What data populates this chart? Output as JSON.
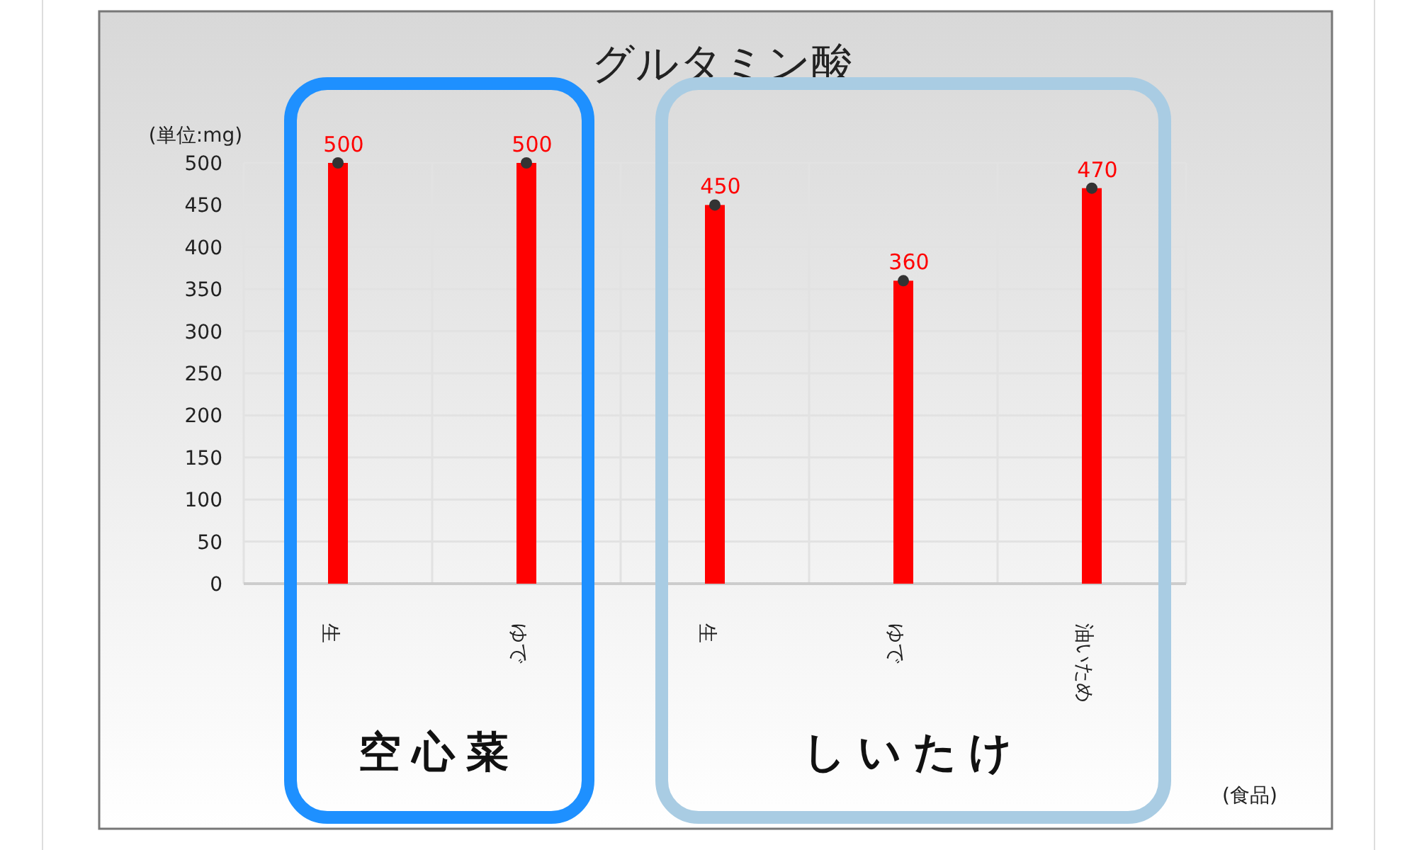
{
  "chart_data": {
    "type": "bar",
    "title": "グルタミン酸",
    "ylabel": "(単位:mg)",
    "xlabel": "(食品)",
    "categories": [
      "生",
      "ゆで",
      "生",
      "ゆで",
      "油いため"
    ],
    "series": [
      {
        "color": "#ff0000",
        "values": [
          500,
          500,
          450,
          360,
          470
        ],
        "value_labels": [
          "500",
          "500",
          "450",
          "360",
          "470"
        ]
      },
      {
        "type": "scatter",
        "color": "#333333",
        "values": [
          500,
          500,
          450,
          360,
          470
        ]
      }
    ],
    "ylim": [
      0,
      500
    ],
    "yticks": [
      0,
      50,
      100,
      150,
      200,
      250,
      300,
      350,
      400,
      450,
      500
    ],
    "grid": true,
    "marker": "circle",
    "annotations": [
      "空心菜",
      "しいたけ"
    ]
  }
}
